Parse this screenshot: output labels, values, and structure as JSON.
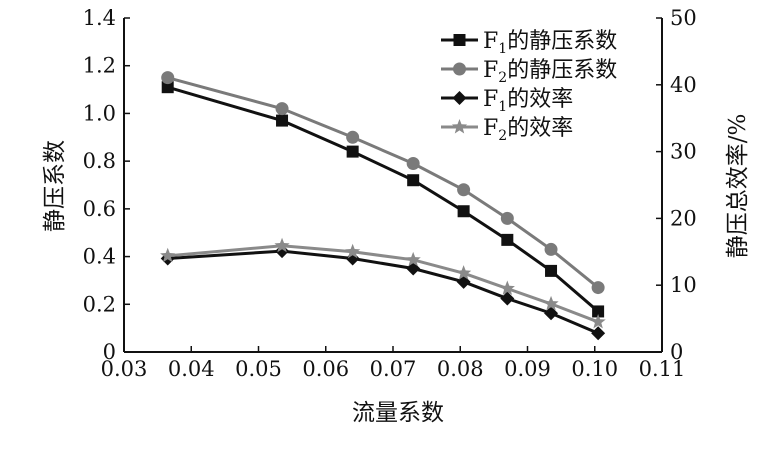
{
  "chart_data": {
    "type": "line",
    "xlabel": "流量系数",
    "ylabel_left": "静压系数",
    "ylabel_right": "静压总效率/%",
    "xlim": [
      0.03,
      0.11
    ],
    "ylim_left": [
      0,
      1.4
    ],
    "ylim_right": [
      0,
      50
    ],
    "x_ticks": [
      "0.03",
      "0.04",
      "0.05",
      "0.06",
      "0.07",
      "0.08",
      "0.09",
      "0.10",
      "0.11"
    ],
    "y_left_ticks": [
      "0",
      "0.2",
      "0.4",
      "0.6",
      "0.8",
      "1.0",
      "1.2",
      "1.4"
    ],
    "y_right_ticks": [
      "0",
      "10",
      "20",
      "30",
      "40",
      "50"
    ],
    "grid": false,
    "legend_position": "top-right",
    "x": [
      0.0365,
      0.0535,
      0.064,
      0.073,
      0.0805,
      0.087,
      0.0935,
      0.1005
    ],
    "series": [
      {
        "name": "F1的静压系数",
        "legend_main": "F",
        "legend_sub": "1",
        "legend_rest": "的静压系数",
        "axis": "left",
        "marker": "square",
        "color": "#111111",
        "values": [
          1.11,
          0.97,
          0.84,
          0.72,
          0.59,
          0.47,
          0.34,
          0.17
        ]
      },
      {
        "name": "F2的静压系数",
        "legend_main": "F",
        "legend_sub": "2",
        "legend_rest": "的静压系数",
        "axis": "left",
        "marker": "circle",
        "color": "#7a7a7a",
        "values": [
          1.15,
          1.02,
          0.9,
          0.79,
          0.68,
          0.56,
          0.43,
          0.27
        ]
      },
      {
        "name": "F1的效率",
        "legend_main": "F",
        "legend_sub": "1",
        "legend_rest": "的效率",
        "axis": "right",
        "marker": "diamond",
        "color": "#111111",
        "values": [
          14.0,
          15.1,
          14.0,
          12.5,
          10.5,
          8.0,
          5.8,
          2.8
        ]
      },
      {
        "name": "F2的效率",
        "legend_main": "F",
        "legend_sub": "2",
        "legend_rest": "的效率",
        "axis": "right",
        "marker": "star",
        "color": "#8a8a8a",
        "values": [
          14.4,
          15.9,
          15.0,
          13.8,
          11.8,
          9.5,
          7.2,
          4.5
        ]
      }
    ]
  }
}
